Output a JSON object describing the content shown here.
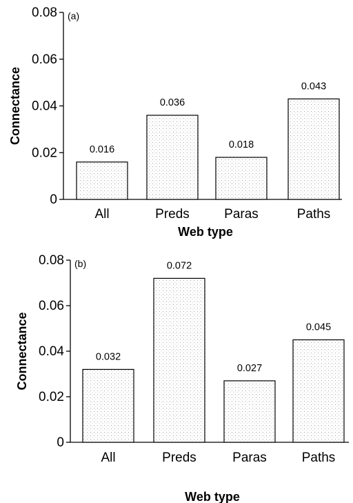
{
  "chart_data": [
    {
      "type": "bar",
      "panel": "(a)",
      "categories": [
        "All",
        "Preds",
        "Paras",
        "Paths"
      ],
      "values": [
        0.016,
        0.036,
        0.018,
        0.043
      ],
      "data_labels": [
        "0.016",
        "0.036",
        "0.018",
        "0.043"
      ],
      "xlabel": "Web type",
      "ylabel": "Connectance",
      "ylim": [
        0,
        0.08
      ],
      "yticks": [
        "0",
        "0.02",
        "0.04",
        "0.06",
        "0.08"
      ],
      "grid": false,
      "bar_fill": "stippled"
    },
    {
      "type": "bar",
      "panel": "(b)",
      "categories": [
        "All",
        "Preds",
        "Paras",
        "Paths"
      ],
      "values": [
        0.032,
        0.072,
        0.027,
        0.045
      ],
      "data_labels": [
        "0.032",
        "0.072",
        "0.027",
        "0.045"
      ],
      "xlabel": "Web type",
      "ylabel": "Connectance",
      "ylim": [
        0,
        0.08
      ],
      "yticks": [
        "0",
        "0.02",
        "0.04",
        "0.06",
        "0.08"
      ],
      "grid": false,
      "bar_fill": "stippled"
    }
  ]
}
